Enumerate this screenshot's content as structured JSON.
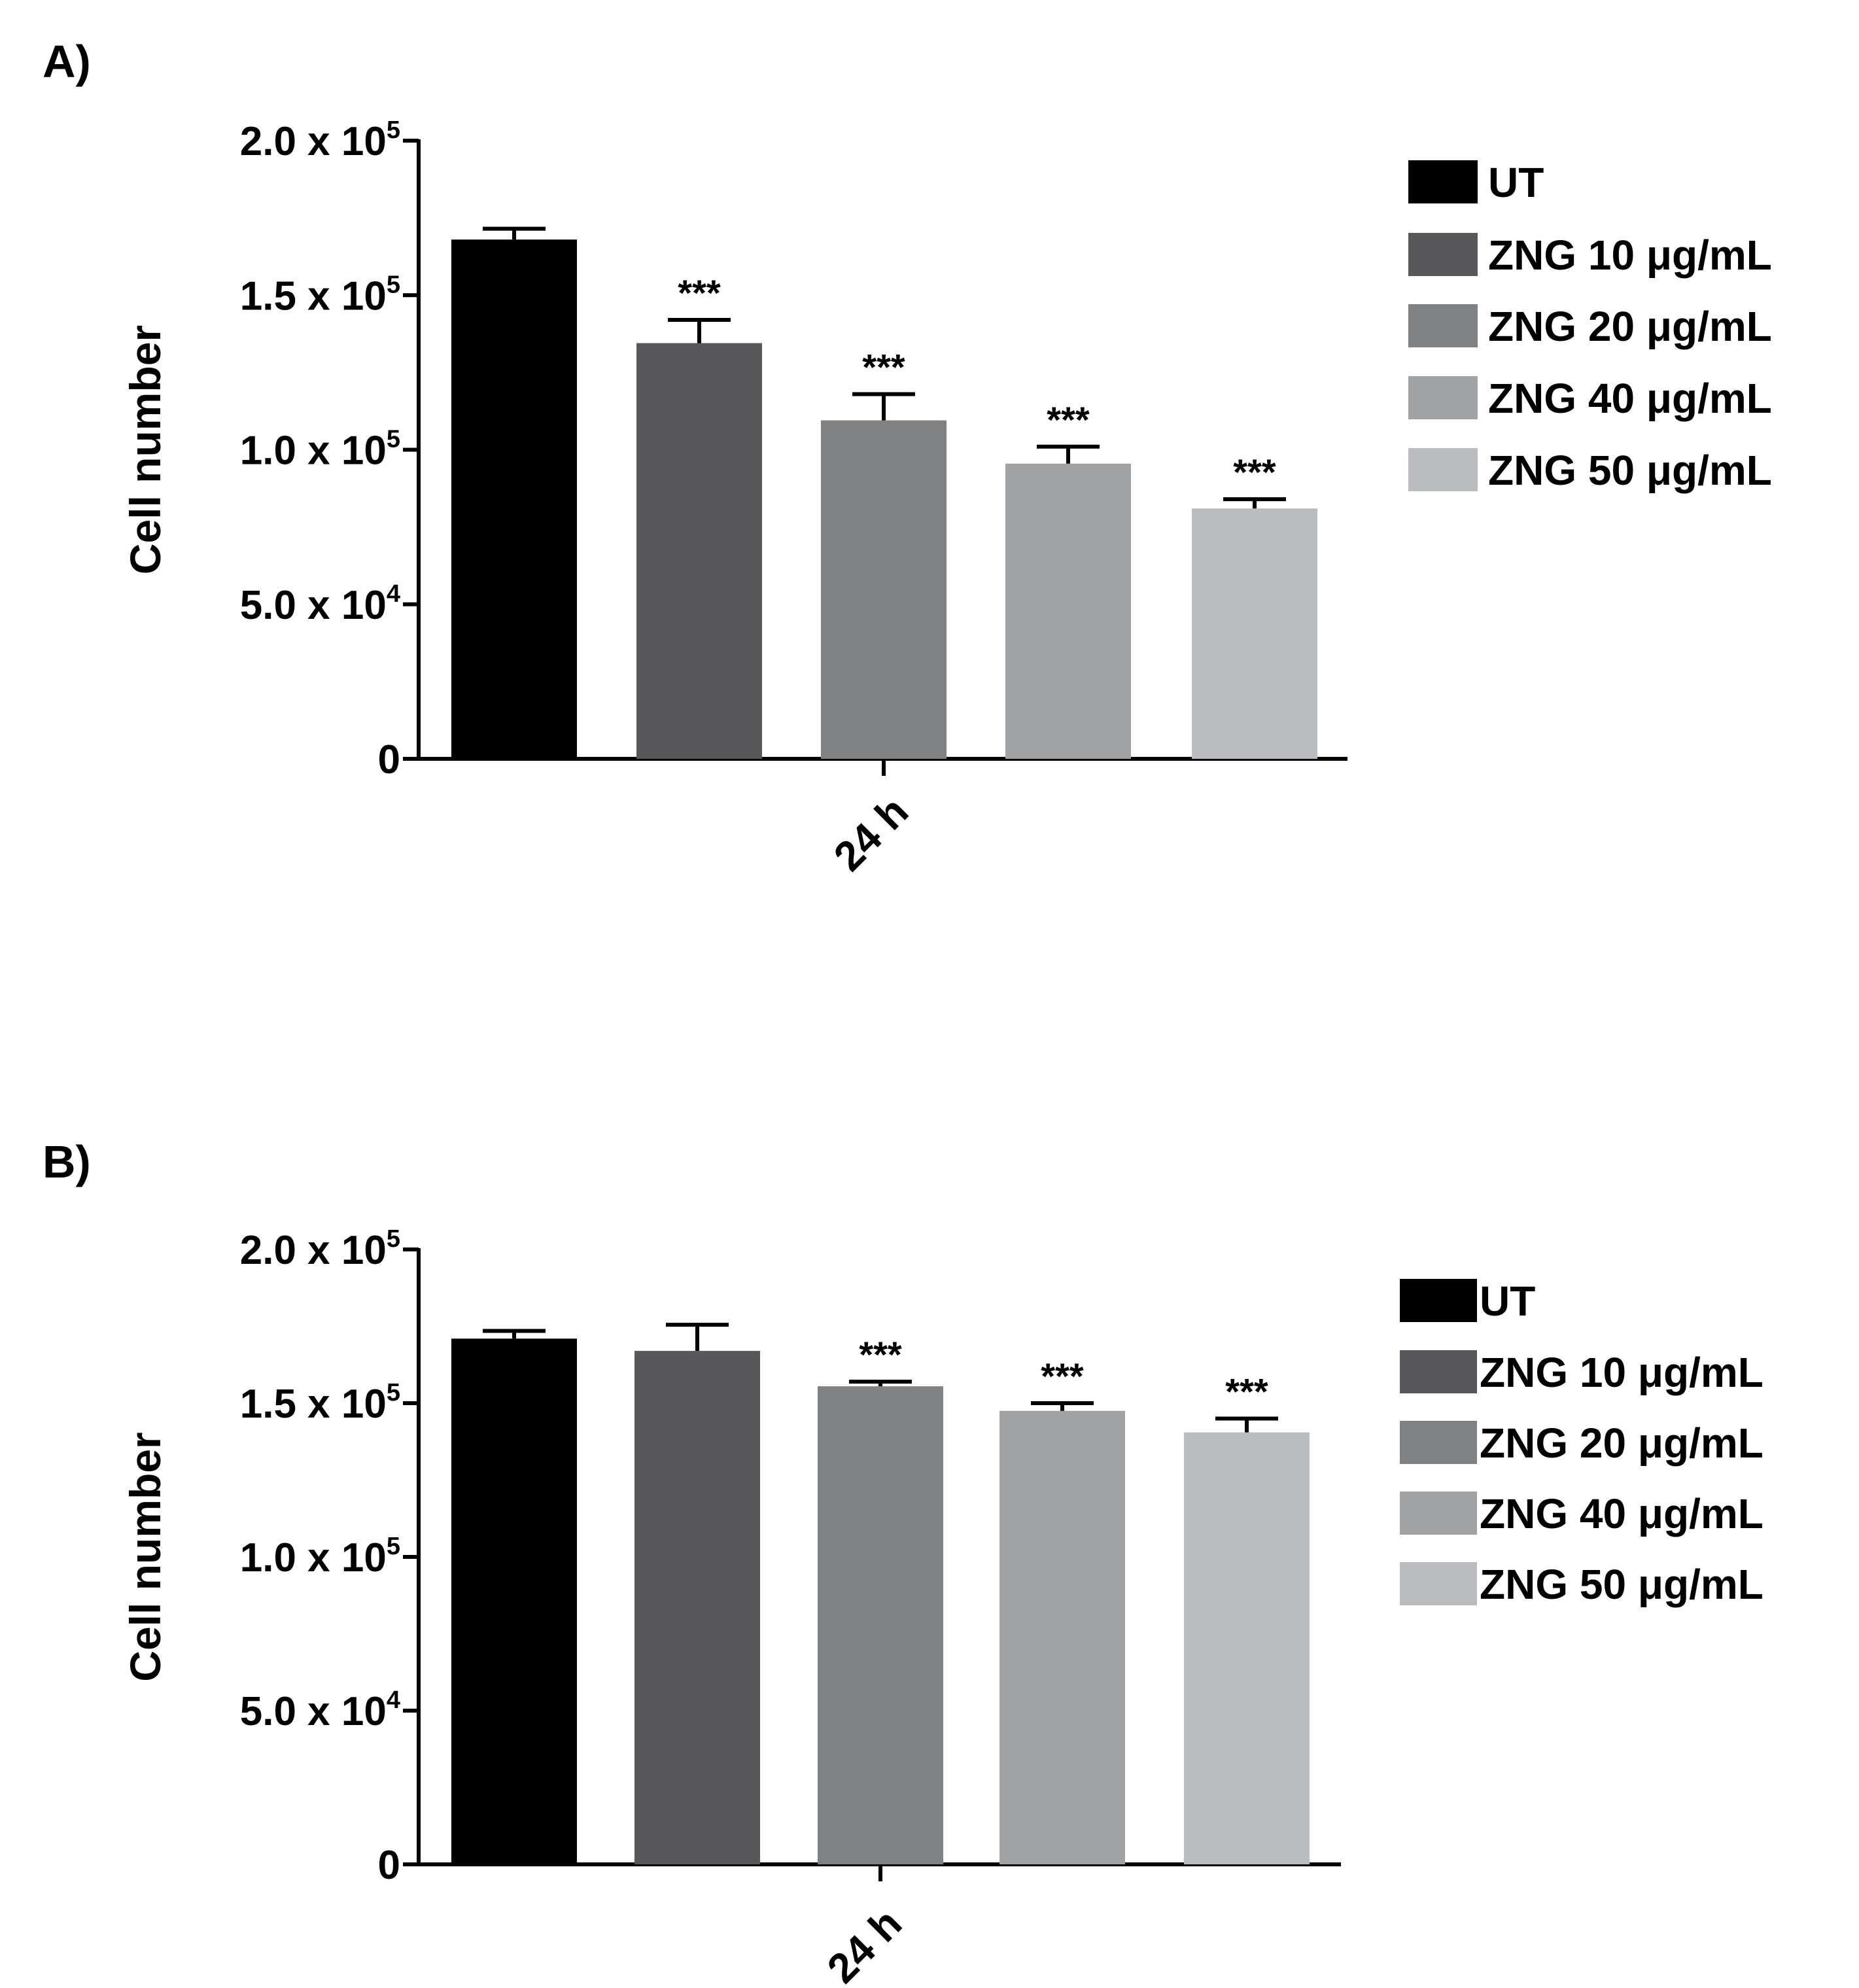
{
  "chart_data": [
    {
      "type": "bar",
      "panel_label": "A)",
      "ylabel": "Cell number",
      "ylim": [
        0,
        200000
      ],
      "yticks": [
        {
          "value": 0,
          "base": "0",
          "exp": ""
        },
        {
          "value": 50000,
          "base": "5.0 x 10",
          "exp": "4"
        },
        {
          "value": 100000,
          "base": "1.0 x 10",
          "exp": "5"
        },
        {
          "value": 150000,
          "base": "1.5 x 10",
          "exp": "5"
        },
        {
          "value": 200000,
          "base": "2.0 x 10",
          "exp": "5"
        }
      ],
      "category": "24 h",
      "series": [
        {
          "name": "UT",
          "value": 168000,
          "error": 3500,
          "sig": "",
          "color": "#000000"
        },
        {
          "name": "ZNG 10 μg/mL",
          "value": 134500,
          "error": 7500,
          "sig": "***",
          "color": "#58585a"
        },
        {
          "name": "ZNG 20 μg/mL",
          "value": 109500,
          "error": 8500,
          "sig": "***",
          "color": "#808183"
        },
        {
          "name": "ZNG 40 μg/mL",
          "value": 95500,
          "error": 5500,
          "sig": "***",
          "color": "#a0a2a3"
        },
        {
          "name": "ZNG 50 μg/mL",
          "value": 81000,
          "error": 3000,
          "sig": "***",
          "color": "#bbbcbf"
        }
      ],
      "legend_position": "right"
    },
    {
      "type": "bar",
      "panel_label": "B)",
      "ylabel": "Cell number",
      "ylim": [
        0,
        200000
      ],
      "yticks": [
        {
          "value": 0,
          "base": "0",
          "exp": ""
        },
        {
          "value": 50000,
          "base": "5.0 x 10",
          "exp": "4"
        },
        {
          "value": 100000,
          "base": "1.0 x 10",
          "exp": "5"
        },
        {
          "value": 150000,
          "base": "1.5 x 10",
          "exp": "5"
        },
        {
          "value": 200000,
          "base": "2.0 x 10",
          "exp": "5"
        }
      ],
      "category": "24 h",
      "series": [
        {
          "name": "UT",
          "value": 171000,
          "error": 2500,
          "sig": "",
          "color": "#000000"
        },
        {
          "name": "ZNG 10 μg/mL",
          "value": 167000,
          "error": 8500,
          "sig": "",
          "color": "#58585a"
        },
        {
          "name": "ZNG 20 μg/mL",
          "value": 155500,
          "error": 1500,
          "sig": "***",
          "color": "#808183"
        },
        {
          "name": "ZNG 40 μg/mL",
          "value": 147500,
          "error": 2500,
          "sig": "***",
          "color": "#a0a2a3"
        },
        {
          "name": "ZNG 50 μg/mL",
          "value": 140500,
          "error": 4500,
          "sig": "***",
          "color": "#bbbcbf"
        }
      ],
      "legend_position": "right"
    }
  ]
}
